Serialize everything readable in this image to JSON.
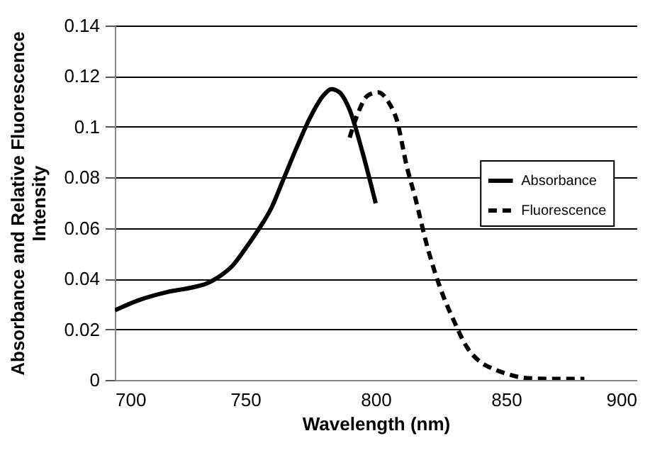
{
  "chart_data": {
    "type": "line",
    "xlabel": "Wavelength (nm)",
    "ylabel": "Absorbance and Relative Fluorescence Intensity",
    "xlim": [
      700,
      900
    ],
    "xticks": [
      700,
      750,
      800,
      850,
      900
    ],
    "ylim": [
      0,
      0.14
    ],
    "yticks": [
      0,
      0.02,
      0.04,
      0.06,
      0.08,
      0.1,
      0.12,
      0.14
    ],
    "grid": "y",
    "legend": "right",
    "marker": "none",
    "series": [
      {
        "name": "Absorbance",
        "color": "#000000",
        "line_style": "solid",
        "x": [
          700,
          710,
          720,
          730,
          735,
          740,
          745,
          750,
          755,
          760,
          765,
          770,
          775,
          780,
          783,
          786,
          790,
          795,
          800
        ],
        "values": [
          0.0275,
          0.0318,
          0.0347,
          0.0366,
          0.038,
          0.0408,
          0.045,
          0.0518,
          0.0593,
          0.0679,
          0.0802,
          0.0925,
          0.1039,
          0.1124,
          0.1149,
          0.1137,
          0.1067,
          0.0897,
          0.0698
        ]
      },
      {
        "name": "Fluorescence",
        "color": "#000000",
        "line_style": "dashed",
        "x": [
          790,
          793,
          797,
          801,
          805,
          808,
          812,
          815,
          820,
          825,
          830,
          835,
          840,
          845,
          850,
          855,
          860,
          870,
          880
        ],
        "values": [
          0.0957,
          0.1048,
          0.1124,
          0.1136,
          0.1096,
          0.103,
          0.084,
          0.0726,
          0.0518,
          0.0356,
          0.0233,
          0.0129,
          0.0072,
          0.0044,
          0.0025,
          0.0011,
          0.0006,
          0.0004,
          0.0004
        ]
      }
    ]
  }
}
